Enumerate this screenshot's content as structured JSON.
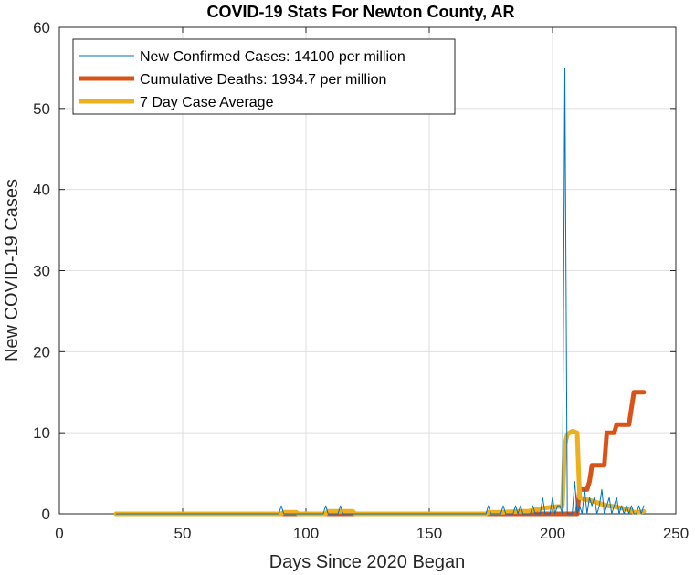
{
  "chart_data": {
    "type": "line",
    "title": "COVID-19 Stats For Newton County, AR",
    "xlabel": "Days Since 2020 Began",
    "ylabel": "New COVID-19 Cases",
    "xlim": [
      0,
      250
    ],
    "ylim": [
      0,
      60
    ],
    "xticks": [
      0,
      50,
      100,
      150,
      200,
      250
    ],
    "yticks": [
      0,
      10,
      20,
      30,
      40,
      50,
      60
    ],
    "grid": true,
    "legend_position": "top-left",
    "series": [
      {
        "name": "New Confirmed Cases: 14100 per million",
        "color": "#0072bd",
        "points": [
          [
            23,
            0
          ],
          [
            89,
            0
          ],
          [
            90,
            1
          ],
          [
            91,
            0
          ],
          [
            107,
            0
          ],
          [
            108,
            1
          ],
          [
            109,
            0
          ],
          [
            113,
            0
          ],
          [
            114,
            1
          ],
          [
            115,
            0
          ],
          [
            173,
            0
          ],
          [
            174,
            1
          ],
          [
            175,
            0
          ],
          [
            179,
            0
          ],
          [
            180,
            1
          ],
          [
            181,
            0
          ],
          [
            184,
            0
          ],
          [
            185,
            1
          ],
          [
            186,
            0
          ],
          [
            187,
            1
          ],
          [
            188,
            0
          ],
          [
            191,
            0
          ],
          [
            192,
            1
          ],
          [
            193,
            0
          ],
          [
            195,
            0
          ],
          [
            196,
            2
          ],
          [
            197,
            0
          ],
          [
            199,
            0
          ],
          [
            200,
            2
          ],
          [
            201,
            0
          ],
          [
            202,
            1
          ],
          [
            203,
            1
          ],
          [
            204,
            0
          ],
          [
            205,
            55
          ],
          [
            206,
            0
          ],
          [
            207,
            0
          ],
          [
            208,
            0
          ],
          [
            209,
            4
          ],
          [
            210,
            0
          ],
          [
            211,
            1
          ],
          [
            212,
            0
          ],
          [
            213,
            3
          ],
          [
            214,
            0
          ],
          [
            215,
            2
          ],
          [
            216,
            1
          ],
          [
            217,
            2
          ],
          [
            218,
            0
          ],
          [
            219,
            1
          ],
          [
            220,
            3
          ],
          [
            221,
            0
          ],
          [
            222,
            1
          ],
          [
            223,
            2
          ],
          [
            224,
            0
          ],
          [
            225,
            1
          ],
          [
            226,
            2
          ],
          [
            227,
            0
          ],
          [
            228,
            1
          ],
          [
            229,
            0
          ],
          [
            230,
            1
          ],
          [
            231,
            0
          ],
          [
            232,
            1
          ],
          [
            233,
            0
          ],
          [
            234,
            0
          ],
          [
            235,
            1
          ],
          [
            236,
            0
          ],
          [
            237,
            1
          ]
        ]
      },
      {
        "name": "Cumulative Deaths: 1934.7 per million",
        "color": "#d95319",
        "points": [
          [
            23,
            0
          ],
          [
            210,
            0
          ],
          [
            211,
            3
          ],
          [
            214,
            3
          ],
          [
            215,
            4
          ],
          [
            216,
            6
          ],
          [
            221,
            6
          ],
          [
            222,
            10
          ],
          [
            225,
            10
          ],
          [
            226,
            11
          ],
          [
            231,
            11
          ],
          [
            232,
            13
          ],
          [
            233,
            15
          ],
          [
            237,
            15
          ]
        ]
      },
      {
        "name": "7 Day Case Average",
        "color": "#edb120",
        "points": [
          [
            23,
            0
          ],
          [
            90,
            0
          ],
          [
            91,
            0.2
          ],
          [
            96,
            0.2
          ],
          [
            97,
            0
          ],
          [
            108,
            0
          ],
          [
            109,
            0.3
          ],
          [
            119,
            0.3
          ],
          [
            120,
            0
          ],
          [
            173,
            0
          ],
          [
            174,
            0.2
          ],
          [
            180,
            0.2
          ],
          [
            186,
            0.3
          ],
          [
            190,
            0.3
          ],
          [
            193,
            0.5
          ],
          [
            196,
            0.7
          ],
          [
            199,
            0.8
          ],
          [
            202,
            0.9
          ],
          [
            204,
            0.9
          ],
          [
            205,
            8.5
          ],
          [
            206,
            9.8
          ],
          [
            208,
            10.2
          ],
          [
            210,
            10.0
          ],
          [
            211,
            2.0
          ],
          [
            213,
            1.8
          ],
          [
            216,
            1.6
          ],
          [
            219,
            1.3
          ],
          [
            222,
            1.0
          ],
          [
            225,
            0.9
          ],
          [
            228,
            0.7
          ],
          [
            231,
            0.5
          ],
          [
            233,
            0.2
          ],
          [
            235,
            0.2
          ],
          [
            237,
            0.3
          ]
        ]
      }
    ]
  }
}
